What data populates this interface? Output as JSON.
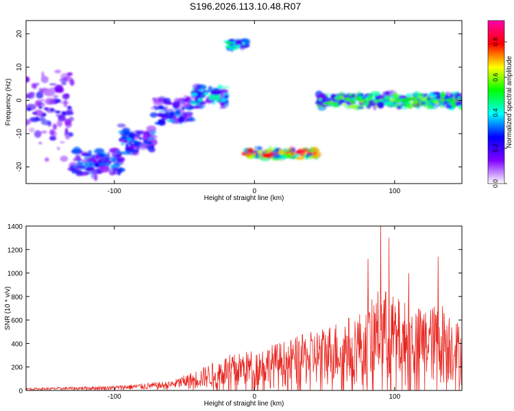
{
  "title": "S196.2026.113.10.48.R07",
  "chart_data": [
    {
      "type": "heatmap",
      "xlabel": "Height of straight line (km)",
      "ylabel": "Frequency (Hz)",
      "xlim": [
        -163,
        148
      ],
      "ylim": [
        -25,
        24
      ],
      "x_ticks": [
        -100,
        0,
        100
      ],
      "y_ticks": [
        20,
        10,
        0,
        -10,
        -20
      ],
      "colorbar": {
        "label": "Normalized spectral amplitude",
        "range": [
          0.0,
          0.92
        ],
        "ticks": [
          0.0,
          0.2,
          0.4,
          0.6,
          0.8
        ],
        "colormap": [
          "#ffffff",
          "#8000ff",
          "#0000ff",
          "#00ffff",
          "#00ff00",
          "#ffff00",
          "#ff0000",
          "#ff00aa"
        ]
      },
      "segments": [
        {
          "x_start": -163,
          "x_end": -130,
          "freq": -3,
          "spread": 14,
          "amplitude": 0.25
        },
        {
          "x_start": -130,
          "x_end": -95,
          "freq": -19,
          "spread": 4,
          "amplitude": 0.35
        },
        {
          "x_start": -95,
          "x_end": -72,
          "freq": -12,
          "spread": 4,
          "amplitude": 0.35
        },
        {
          "x_start": -72,
          "x_end": -45,
          "freq": -3,
          "spread": 4,
          "amplitude": 0.35
        },
        {
          "x_start": -45,
          "x_end": -20,
          "freq": 1,
          "spread": 3,
          "amplitude": 0.45
        },
        {
          "x_start": -20,
          "x_end": -6,
          "freq": 17,
          "spread": 1.5,
          "amplitude": 0.5
        },
        {
          "x_start": -6,
          "x_end": 45,
          "freq": -16,
          "spread": 1.5,
          "amplitude": 0.85
        },
        {
          "x_start": 45,
          "x_end": 148,
          "freq": 0,
          "spread": 2,
          "amplitude": 0.6
        }
      ]
    },
    {
      "type": "line",
      "xlabel": "Height of straight line (km)",
      "ylabel": "SNR (10 * v/v)",
      "xlim": [
        -163,
        148
      ],
      "ylim": [
        0,
        1400
      ],
      "x_ticks": [
        -100,
        0,
        100
      ],
      "y_ticks": [
        0,
        200,
        400,
        600,
        800,
        1000,
        1200,
        1400
      ],
      "color": "#e8251f",
      "envelope": [
        {
          "x": -163,
          "y": 20
        },
        {
          "x": -100,
          "y": 40
        },
        {
          "x": -60,
          "y": 80
        },
        {
          "x": -40,
          "y": 180
        },
        {
          "x": -20,
          "y": 300
        },
        {
          "x": 0,
          "y": 350
        },
        {
          "x": 20,
          "y": 420
        },
        {
          "x": 40,
          "y": 500
        },
        {
          "x": 60,
          "y": 600
        },
        {
          "x": 80,
          "y": 700
        },
        {
          "x": 90,
          "y": 900
        },
        {
          "x": 100,
          "y": 800
        },
        {
          "x": 120,
          "y": 700
        },
        {
          "x": 135,
          "y": 750
        },
        {
          "x": 148,
          "y": 550
        }
      ],
      "peaks": [
        {
          "x": 90,
          "y": 1400
        },
        {
          "x": 96,
          "y": 1300
        },
        {
          "x": 81,
          "y": 1120
        },
        {
          "x": 131,
          "y": 1140
        },
        {
          "x": 110,
          "y": 1000
        }
      ]
    }
  ]
}
